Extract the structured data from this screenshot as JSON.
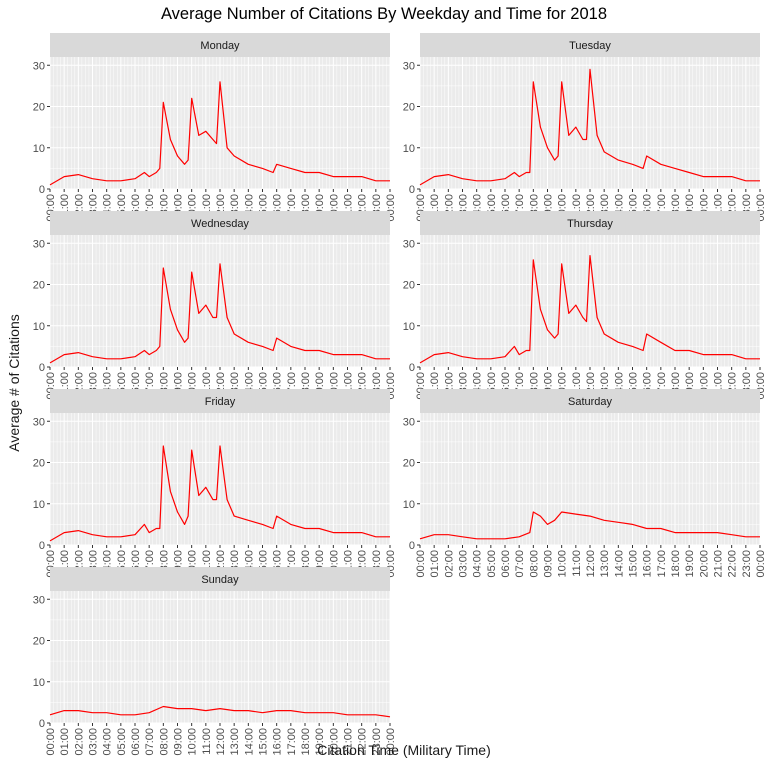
{
  "title": "Average Number of Citations By Weekday and Time for 2018",
  "chart_data": {
    "type": "line",
    "title": "Average Number of Citations By Weekday and Time for 2018",
    "xlabel": "Citation Time (Military Time)",
    "ylabel": "Average # of Citations",
    "x_tick_labels": [
      "00:00",
      "01:00",
      "02:00",
      "03:00",
      "04:00",
      "05:00",
      "06:00",
      "07:00",
      "08:00",
      "09:00",
      "10:00",
      "11:00",
      "12:00",
      "13:00",
      "14:00",
      "15:00",
      "16:00",
      "17:00",
      "18:00",
      "19:00",
      "20:00",
      "21:00",
      "22:00",
      "23:00",
      "00:00"
    ],
    "y_ticks": [
      0,
      10,
      20,
      30
    ],
    "ylim": [
      0,
      32
    ],
    "xlim": [
      "00:00",
      "24:00"
    ],
    "grid": true,
    "line_color": "#ff0000",
    "panel_background": "#ebebeb",
    "strip_background": "#d9d9d9",
    "facets": [
      {
        "name": "Monday",
        "x": [
          "00:00",
          "01:00",
          "02:00",
          "03:00",
          "04:00",
          "05:00",
          "06:00",
          "06:40",
          "07:00",
          "07:30",
          "07:45",
          "08:00",
          "08:30",
          "09:00",
          "09:30",
          "09:45",
          "10:00",
          "10:30",
          "11:00",
          "11:30",
          "11:45",
          "12:00",
          "12:30",
          "13:00",
          "14:00",
          "15:00",
          "15:45",
          "16:00",
          "17:00",
          "18:00",
          "19:00",
          "20:00",
          "21:00",
          "22:00",
          "23:00",
          "24:00"
        ],
        "y": [
          1,
          3,
          3.5,
          2.5,
          2,
          2,
          2.5,
          4,
          3,
          4,
          5,
          21,
          12,
          8,
          6,
          7,
          22,
          13,
          14,
          12,
          11,
          26,
          10,
          8,
          6,
          5,
          4,
          6,
          5,
          4,
          4,
          3,
          3,
          3,
          2,
          2
        ]
      },
      {
        "name": "Tuesday",
        "x": [
          "00:00",
          "01:00",
          "02:00",
          "03:00",
          "04:00",
          "05:00",
          "06:00",
          "06:40",
          "07:00",
          "07:30",
          "07:45",
          "08:00",
          "08:30",
          "09:00",
          "09:30",
          "09:45",
          "10:00",
          "10:30",
          "11:00",
          "11:30",
          "11:45",
          "12:00",
          "12:30",
          "13:00",
          "14:00",
          "15:00",
          "15:45",
          "16:00",
          "17:00",
          "18:00",
          "19:00",
          "20:00",
          "21:00",
          "22:00",
          "23:00",
          "24:00"
        ],
        "y": [
          1,
          3,
          3.5,
          2.5,
          2,
          2,
          2.5,
          4,
          3,
          4,
          4,
          26,
          15,
          10,
          7,
          8,
          26,
          13,
          15,
          12,
          12,
          29,
          13,
          9,
          7,
          6,
          5,
          8,
          6,
          5,
          4,
          3,
          3,
          3,
          2,
          2
        ]
      },
      {
        "name": "Wednesday",
        "x": [
          "00:00",
          "01:00",
          "02:00",
          "03:00",
          "04:00",
          "05:00",
          "06:00",
          "06:40",
          "07:00",
          "07:30",
          "07:45",
          "08:00",
          "08:30",
          "09:00",
          "09:30",
          "09:45",
          "10:00",
          "10:30",
          "11:00",
          "11:30",
          "11:45",
          "12:00",
          "12:30",
          "13:00",
          "14:00",
          "15:00",
          "15:45",
          "16:00",
          "17:00",
          "18:00",
          "19:00",
          "20:00",
          "21:00",
          "22:00",
          "23:00",
          "24:00"
        ],
        "y": [
          1,
          3,
          3.5,
          2.5,
          2,
          2,
          2.5,
          4,
          3,
          4,
          5,
          24,
          14,
          9,
          6,
          7,
          23,
          13,
          15,
          12,
          12,
          25,
          12,
          8,
          6,
          5,
          4,
          7,
          5,
          4,
          4,
          3,
          3,
          3,
          2,
          2
        ]
      },
      {
        "name": "Thursday",
        "x": [
          "00:00",
          "01:00",
          "02:00",
          "03:00",
          "04:00",
          "05:00",
          "06:00",
          "06:40",
          "07:00",
          "07:30",
          "07:45",
          "08:00",
          "08:30",
          "09:00",
          "09:30",
          "09:45",
          "10:00",
          "10:30",
          "11:00",
          "11:30",
          "11:45",
          "12:00",
          "12:30",
          "13:00",
          "14:00",
          "15:00",
          "15:45",
          "16:00",
          "17:00",
          "18:00",
          "19:00",
          "20:00",
          "21:00",
          "22:00",
          "23:00",
          "24:00"
        ],
        "y": [
          1,
          3,
          3.5,
          2.5,
          2,
          2,
          2.5,
          5,
          3,
          4,
          4,
          26,
          14,
          9,
          7,
          8,
          25,
          13,
          15,
          12,
          11,
          27,
          12,
          8,
          6,
          5,
          4,
          8,
          6,
          4,
          4,
          3,
          3,
          3,
          2,
          2
        ]
      },
      {
        "name": "Friday",
        "x": [
          "00:00",
          "01:00",
          "02:00",
          "03:00",
          "04:00",
          "05:00",
          "06:00",
          "06:40",
          "07:00",
          "07:30",
          "07:45",
          "08:00",
          "08:30",
          "09:00",
          "09:30",
          "09:45",
          "10:00",
          "10:30",
          "11:00",
          "11:30",
          "11:45",
          "12:00",
          "12:30",
          "13:00",
          "14:00",
          "15:00",
          "15:45",
          "16:00",
          "17:00",
          "18:00",
          "19:00",
          "20:00",
          "21:00",
          "22:00",
          "23:00",
          "24:00"
        ],
        "y": [
          1,
          3,
          3.5,
          2.5,
          2,
          2,
          2.5,
          5,
          3,
          4,
          4,
          24,
          13,
          8,
          5,
          7,
          23,
          12,
          14,
          11,
          11,
          24,
          11,
          7,
          6,
          5,
          4,
          7,
          5,
          4,
          4,
          3,
          3,
          3,
          2,
          2
        ]
      },
      {
        "name": "Saturday",
        "x": [
          "00:00",
          "01:00",
          "02:00",
          "03:00",
          "04:00",
          "05:00",
          "06:00",
          "07:00",
          "07:45",
          "08:00",
          "08:30",
          "09:00",
          "09:30",
          "10:00",
          "11:00",
          "12:00",
          "13:00",
          "14:00",
          "15:00",
          "16:00",
          "17:00",
          "18:00",
          "19:00",
          "20:00",
          "21:00",
          "22:00",
          "23:00",
          "24:00"
        ],
        "y": [
          1.5,
          2.5,
          2.5,
          2,
          1.5,
          1.5,
          1.5,
          2,
          3,
          8,
          7,
          5,
          6,
          8,
          7.5,
          7,
          6,
          5.5,
          5,
          4,
          4,
          3,
          3,
          3,
          3,
          2.5,
          2,
          2
        ]
      },
      {
        "name": "Sunday",
        "x": [
          "00:00",
          "01:00",
          "02:00",
          "03:00",
          "04:00",
          "05:00",
          "06:00",
          "07:00",
          "08:00",
          "09:00",
          "10:00",
          "11:00",
          "12:00",
          "13:00",
          "14:00",
          "15:00",
          "16:00",
          "17:00",
          "18:00",
          "19:00",
          "20:00",
          "21:00",
          "22:00",
          "23:00",
          "24:00"
        ],
        "y": [
          2,
          3,
          3,
          2.5,
          2.5,
          2,
          2,
          2.5,
          4,
          3.5,
          3.5,
          3,
          3.5,
          3,
          3,
          2.5,
          3,
          3,
          2.5,
          2.5,
          2.5,
          2,
          2,
          2,
          1.5
        ]
      }
    ]
  }
}
